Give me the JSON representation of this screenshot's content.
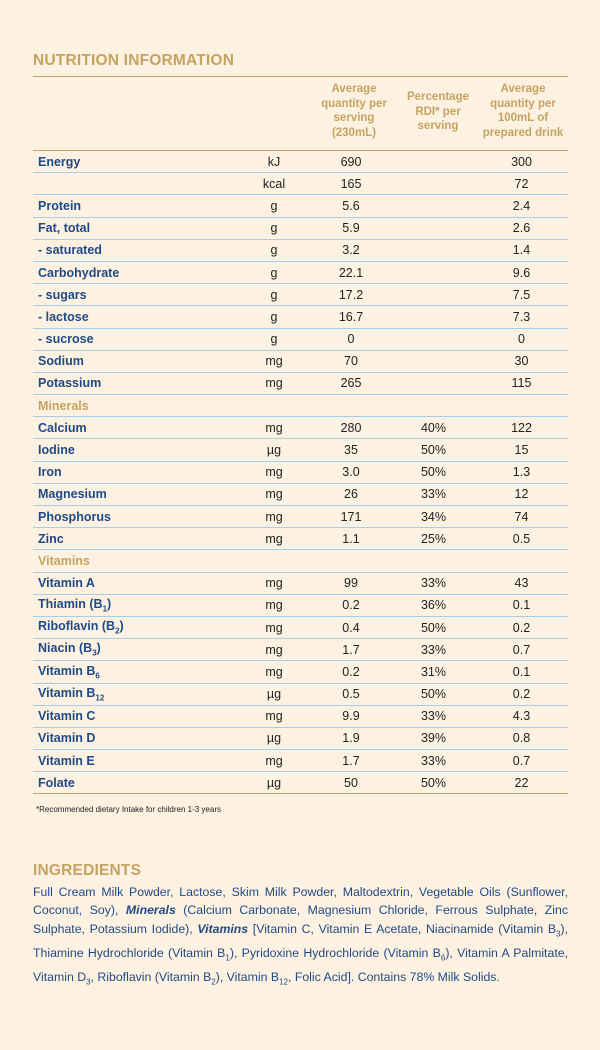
{
  "title": "NUTRITION INFORMATION",
  "headers": {
    "per_serving": "Average quantity per serving (230mL)",
    "rdi": "Percentage RDI* per serving",
    "per_100ml": "Average quantity per 100mL of prepared drink"
  },
  "rows": [
    {
      "name": "Energy",
      "unit": "kJ",
      "serving": "690",
      "rdi": "",
      "per100": "300"
    },
    {
      "name": "",
      "unit": "kcal",
      "serving": "165",
      "rdi": "",
      "per100": "72"
    },
    {
      "name": "Protein",
      "unit": "g",
      "serving": "5.6",
      "rdi": "",
      "per100": "2.4"
    },
    {
      "name": "Fat, total",
      "unit": "g",
      "serving": "5.9",
      "rdi": "",
      "per100": "2.6"
    },
    {
      "name": "- saturated",
      "unit": "g",
      "serving": "3.2",
      "rdi": "",
      "per100": "1.4",
      "indent": true
    },
    {
      "name": "Carbohydrate",
      "unit": "g",
      "serving": "22.1",
      "rdi": "",
      "per100": "9.6"
    },
    {
      "name": "- sugars",
      "unit": "g",
      "serving": "17.2",
      "rdi": "",
      "per100": "7.5",
      "indent": true
    },
    {
      "name": "- lactose",
      "unit": "g",
      "serving": "16.7",
      "rdi": "",
      "per100": "7.3",
      "indent": true
    },
    {
      "name": "- sucrose",
      "unit": "g",
      "serving": "0",
      "rdi": "",
      "per100": "0",
      "indent": true
    },
    {
      "name": "Sodium",
      "unit": "mg",
      "serving": "70",
      "rdi": "",
      "per100": "30"
    },
    {
      "name": "Potassium",
      "unit": "mg",
      "serving": "265",
      "rdi": "",
      "per100": "115"
    },
    {
      "name": "Minerals",
      "section": true
    },
    {
      "name": "Calcium",
      "unit": "mg",
      "serving": "280",
      "rdi": "40%",
      "per100": "122"
    },
    {
      "name": "Iodine",
      "unit": "µg",
      "serving": "35",
      "rdi": "50%",
      "per100": "15"
    },
    {
      "name": "Iron",
      "unit": "mg",
      "serving": "3.0",
      "rdi": "50%",
      "per100": "1.3"
    },
    {
      "name": "Magnesium",
      "unit": "mg",
      "serving": "26",
      "rdi": "33%",
      "per100": "12"
    },
    {
      "name": "Phosphorus",
      "unit": "mg",
      "serving": "171",
      "rdi": "34%",
      "per100": "74"
    },
    {
      "name": "Zinc",
      "unit": "mg",
      "serving": "1.1",
      "rdi": "25%",
      "per100": "0.5"
    },
    {
      "name": "Vitamins",
      "section": true
    },
    {
      "name": "Vitamin A",
      "unit": "mg",
      "serving": "99",
      "rdi": "33%",
      "per100": "43"
    },
    {
      "name": "Thiamin (B",
      "sub": "1",
      "tail": ")",
      "unit": "mg",
      "serving": "0.2",
      "rdi": "36%",
      "per100": "0.1"
    },
    {
      "name": "Riboflavin (B",
      "sub": "2",
      "tail": ")",
      "unit": "mg",
      "serving": "0.4",
      "rdi": "50%",
      "per100": "0.2"
    },
    {
      "name": "Niacin (B",
      "sub": "3",
      "tail": ")",
      "unit": "mg",
      "serving": "1.7",
      "rdi": "33%",
      "per100": "0.7"
    },
    {
      "name": "Vitamin B",
      "sub": "6",
      "tail": "",
      "unit": "mg",
      "serving": "0.2",
      "rdi": "31%",
      "per100": "0.1"
    },
    {
      "name": "Vitamin B",
      "sub": "12",
      "tail": "",
      "unit": "µg",
      "serving": "0.5",
      "rdi": "50%",
      "per100": "0.2"
    },
    {
      "name": "Vitamin C",
      "unit": "mg",
      "serving": "9.9",
      "rdi": "33%",
      "per100": "4.3"
    },
    {
      "name": "Vitamin D",
      "unit": "µg",
      "serving": "1.9",
      "rdi": "39%",
      "per100": "0.8"
    },
    {
      "name": "Vitamin E",
      "unit": "mg",
      "serving": "1.7",
      "rdi": "33%",
      "per100": "0.7"
    },
    {
      "name": "Folate",
      "unit": "µg",
      "serving": "50",
      "rdi": "50%",
      "per100": "22"
    }
  ],
  "footnote": "*Recommended dietary Intake for children 1-3 years",
  "ingredients_title": "INGREDIENTS",
  "ingredients": [
    {
      "t": "Full Cream Milk Powder, Lactose,  Skim Milk Powder, Maltodextrin, Vegetable Oils (Sunflower, Coconut, Soy), "
    },
    {
      "t": "Minerals",
      "em": true
    },
    {
      "t": " (Calcium Carbonate, Magnesium Chloride, Ferrous Sulphate, Zinc Sulphate, Potassium Iodide), "
    },
    {
      "t": "Vitamins",
      "em": true
    },
    {
      "t": " [Vitamin C, Vitamin E Acetate, Niacinamide (Vitamin B"
    },
    {
      "t": "3",
      "sub": true
    },
    {
      "t": "), Thiamine Hydrochloride (Vitamin B"
    },
    {
      "t": "1",
      "sub": true
    },
    {
      "t": "), Pyridoxine Hydrochloride (Vitamin B"
    },
    {
      "t": "6",
      "sub": true
    },
    {
      "t": "), Vitamin A Palmitate, Vitamin D"
    },
    {
      "t": "3",
      "sub": true
    },
    {
      "t": ", Riboflavin (Vitamin B"
    },
    {
      "t": "2",
      "sub": true
    },
    {
      "t": "),  Vitamin B"
    },
    {
      "t": "12",
      "sub": true
    },
    {
      "t": ", Folic Acid]. Contains 78% Milk Solids."
    }
  ]
}
